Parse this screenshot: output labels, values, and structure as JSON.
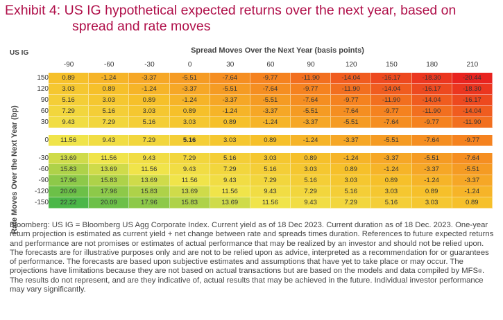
{
  "title_line1": "Exhibit 4: US IG hypothetical expected returns over the next year, based on",
  "title_line2": "spread and rate moves",
  "corner_label": "US IG",
  "chart_data": {
    "type": "heatmap",
    "xlabel": "Spread Moves Over the Next Year (basis points)",
    "ylabel": "Rate Moves Over the Next Year (bp)",
    "columns": [
      "-90",
      "-60",
      "-30",
      "0",
      "30",
      "60",
      "90",
      "120",
      "150",
      "180",
      "210"
    ],
    "rows": [
      "150",
      "120",
      "90",
      "60",
      "30",
      "0",
      "-30",
      "-60",
      "-90",
      "-120",
      "-150"
    ],
    "values": [
      [
        "0.89",
        "-1.24",
        "-3.37",
        "-5.51",
        "-7.64",
        "-9.77",
        "-11.90",
        "-14.04",
        "-16.17",
        "-18.30",
        "-20.44"
      ],
      [
        "3.03",
        "0.89",
        "-1.24",
        "-3.37",
        "-5.51",
        "-7.64",
        "-9.77",
        "-11.90",
        "-14.04",
        "-16.17",
        "-18.30"
      ],
      [
        "5.16",
        "3.03",
        "0.89",
        "-1.24",
        "-3.37",
        "-5.51",
        "-7.64",
        "-9.77",
        "-11.90",
        "-14.04",
        "-16.17"
      ],
      [
        "7.29",
        "5.16",
        "3.03",
        "0.89",
        "-1.24",
        "-3.37",
        "-5.51",
        "-7.64",
        "-9.77",
        "-11.90",
        "-14.04"
      ],
      [
        "9.43",
        "7.29",
        "5.16",
        "3.03",
        "0.89",
        "-1.24",
        "-3.37",
        "-5.51",
        "-7.64",
        "-9.77",
        "-11.90"
      ],
      [
        "11.56",
        "9.43",
        "7.29",
        "5.16",
        "3.03",
        "0.89",
        "-1.24",
        "-3.37",
        "-5.51",
        "-7.64",
        "-9.77"
      ],
      [
        "13.69",
        "11.56",
        "9.43",
        "7.29",
        "5.16",
        "3.03",
        "0.89",
        "-1.24",
        "-3.37",
        "-5.51",
        "-7.64"
      ],
      [
        "15.83",
        "13.69",
        "11.56",
        "9.43",
        "7.29",
        "5.16",
        "3.03",
        "0.89",
        "-1.24",
        "-3.37",
        "-5.51"
      ],
      [
        "17.96",
        "15.83",
        "13.69",
        "11.56",
        "9.43",
        "7.29",
        "5.16",
        "3.03",
        "0.89",
        "-1.24",
        "-3.37"
      ],
      [
        "20.09",
        "17.96",
        "15.83",
        "13.69",
        "11.56",
        "9.43",
        "7.29",
        "5.16",
        "3.03",
        "0.89",
        "-1.24"
      ],
      [
        "22.22",
        "20.09",
        "17.96",
        "15.83",
        "13.69",
        "11.56",
        "9.43",
        "7.29",
        "5.16",
        "3.03",
        "0.89"
      ]
    ],
    "highlighted_value": "5.16",
    "color_scale": [
      "#e8231f",
      "#f5821f",
      "#f6c02a",
      "#f0e44a",
      "#4bb748"
    ]
  },
  "footnote_text": "Bloomberg: US IG = Bloomberg US Agg Corporate Index. Current yield as of 18 Dec 2023. Current duration as of 18 Dec. 2023. One-year return projection is estimated as current yield + net change between rate and spreads times duration. References to future expected returns and performance are not promises or estimates of actual performance that may be realized by an investor and should not be relied upon. The forecasts are for illustrative purposes only and are not to be relied upon as advice, interpreted as a recommendation for or guarantees of performance. The forecasts are based upon subjective estimates and assumptions that have yet to take place or may occur. The projections have limitations because they are not based on actual transactions but are based on the models and data compiled by MFS",
  "footnote_mark": "®",
  "footnote_tail": ". The results do not represent, and are they indicative of, actual results that may be achieved in the future. Individual investor performance may vary significantly."
}
